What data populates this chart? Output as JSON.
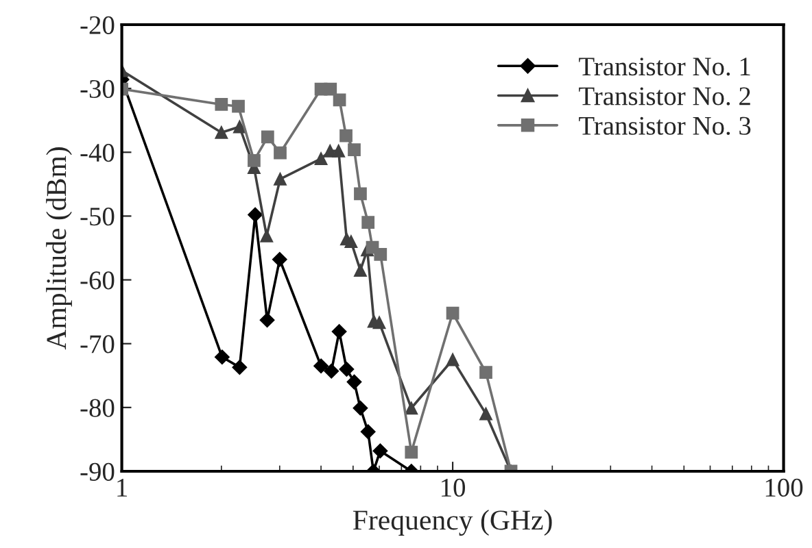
{
  "chart_data": {
    "type": "line",
    "xlabel": "Frequency (GHz)",
    "ylabel": "Amplitude (dBm)",
    "log": "x",
    "xlim": [
      1,
      100
    ],
    "xticks": [
      1,
      10,
      100
    ],
    "ylim": [
      -90,
      -20
    ],
    "yticks": [
      -90,
      -80,
      -70,
      -60,
      -50,
      -40,
      -30,
      -20
    ],
    "grid": false,
    "legend": "top right",
    "line_style": "solid",
    "series": [
      {
        "name": "Transistor No. 1",
        "color": "#000000",
        "marker": "diamond",
        "x": [
          1,
          2.01,
          2.27,
          2.53,
          2.75,
          3.0,
          4.0,
          4.3,
          4.54,
          4.78,
          5.04,
          5.26,
          5.55,
          5.76,
          6.04,
          7.5
        ],
        "values": [
          -28.6,
          -72.1,
          -73.7,
          -49.8,
          -66.3,
          -56.8,
          -73.5,
          -74.3,
          -68.1,
          -74.0,
          -76.0,
          -80.1,
          -83.8,
          -90,
          -86.8,
          -90
        ]
      },
      {
        "name": "Transistor No. 2",
        "color": "#404040",
        "marker": "triangle",
        "x": [
          1,
          2.0,
          2.27,
          2.51,
          2.74,
          3.01,
          4.0,
          4.26,
          4.52,
          4.78,
          4.93,
          5.26,
          5.52,
          5.78,
          6.0,
          7.5,
          10.0,
          12.6,
          15.0
        ],
        "values": [
          -27.2,
          -36.9,
          -36.0,
          -42.4,
          -53.1,
          -44.2,
          -41.0,
          -39.8,
          -39.8,
          -53.6,
          -54.0,
          -58.5,
          -55.3,
          -66.5,
          -66.7,
          -80.1,
          -72.5,
          -81.0,
          -90
        ]
      },
      {
        "name": "Transistor No. 3",
        "color": "#707070",
        "marker": "square",
        "x": [
          1,
          2.0,
          2.25,
          2.51,
          2.76,
          3.01,
          4.0,
          4.27,
          4.55,
          4.76,
          5.04,
          5.26,
          5.55,
          5.72,
          6.05,
          7.5,
          10.0,
          12.6,
          15.0
        ],
        "values": [
          -30.1,
          -32.5,
          -32.8,
          -41.3,
          -37.6,
          -40.1,
          -30.1,
          -30.1,
          -31.8,
          -37.4,
          -39.6,
          -46.5,
          -51.0,
          -54.9,
          -56.0,
          -87.0,
          -65.2,
          -74.5,
          -90
        ]
      }
    ]
  }
}
